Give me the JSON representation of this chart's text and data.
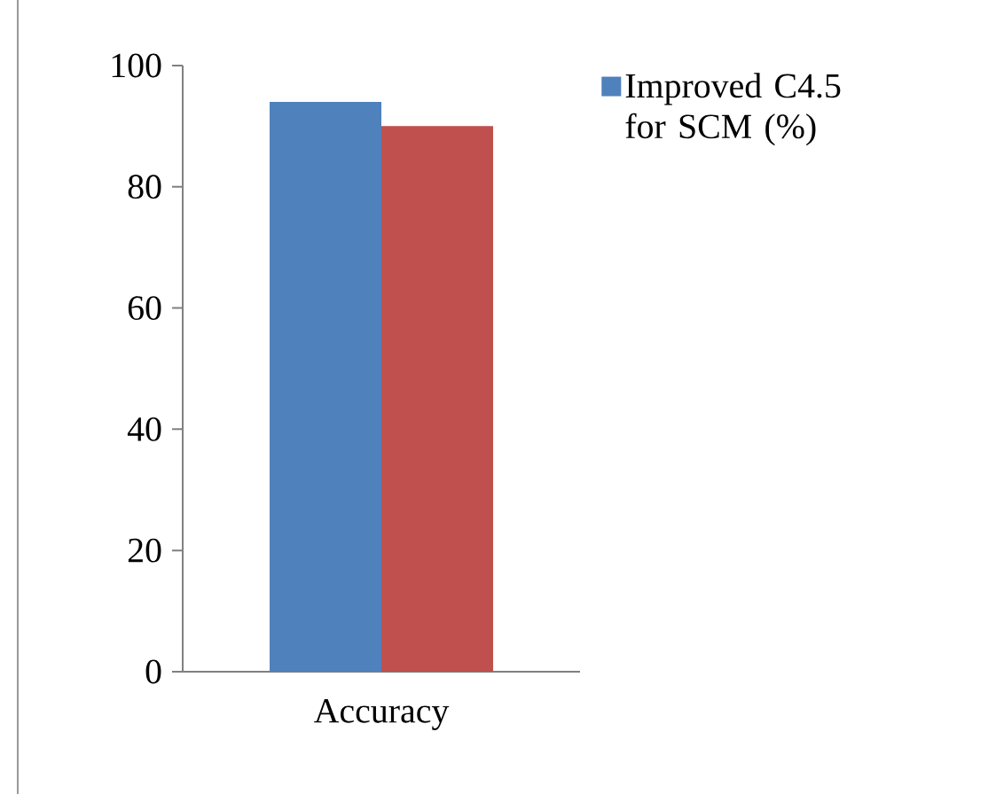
{
  "chart_data": {
    "type": "bar",
    "categories": [
      "Accuracy"
    ],
    "series": [
      {
        "name": "Improved C4.5 for SCM (%)",
        "color": "#4f81bd",
        "values": [
          94
        ]
      },
      {
        "color": "#c0504d",
        "values": [
          90
        ]
      }
    ],
    "ylim": [
      0,
      100
    ],
    "yticks": [
      0,
      20,
      40,
      60,
      80,
      100
    ],
    "grid": false,
    "legend": "right"
  }
}
